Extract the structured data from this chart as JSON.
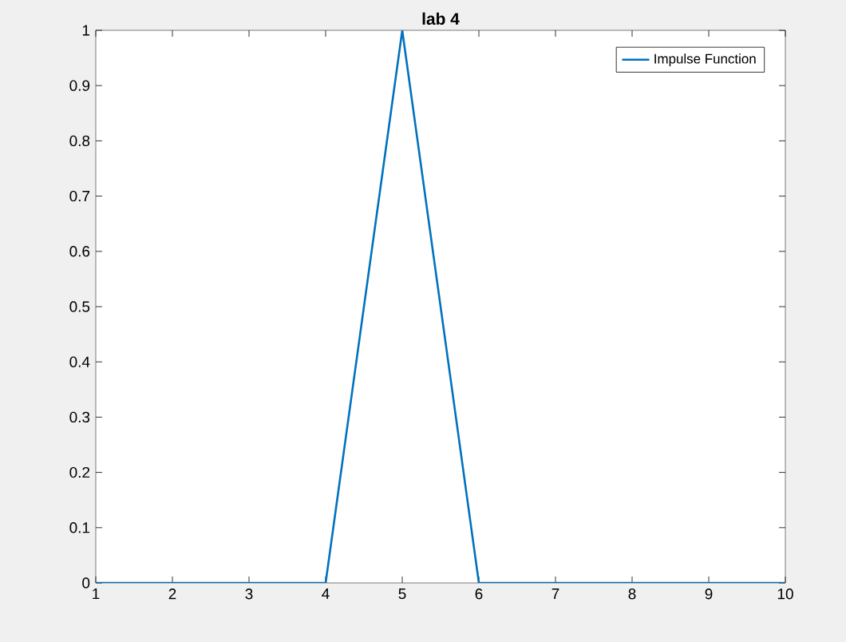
{
  "chart_data": {
    "type": "line",
    "title": "lab 4",
    "x": [
      1,
      2,
      3,
      4,
      5,
      6,
      7,
      8,
      9,
      10
    ],
    "series": [
      {
        "name": "Impulse Function",
        "color": "#0072bd",
        "values": [
          0,
          0,
          0,
          0,
          1,
          0,
          0,
          0,
          0,
          0
        ]
      }
    ],
    "xlim": [
      1,
      10
    ],
    "xticks": [
      1,
      2,
      3,
      4,
      5,
      6,
      7,
      8,
      9,
      10
    ],
    "ylim": [
      0,
      1
    ],
    "yticks": [
      0,
      0.1,
      0.2,
      0.3,
      0.4,
      0.5,
      0.6,
      0.7,
      0.8,
      0.9,
      1
    ],
    "grid": false,
    "legend": "top right",
    "marker": "none",
    "line_style": "solid"
  }
}
